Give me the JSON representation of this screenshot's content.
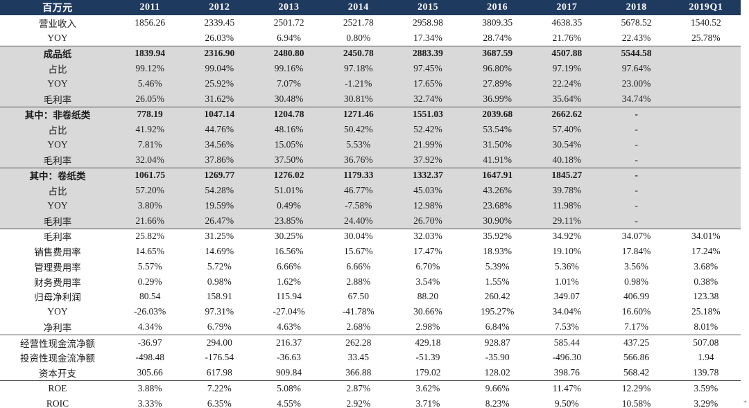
{
  "header": {
    "unit_label": "百万元",
    "years": [
      "2011",
      "2012",
      "2013",
      "2014",
      "2015",
      "2016",
      "2017",
      "2018",
      "2019Q1"
    ]
  },
  "rows": [
    {
      "label": "营业收入",
      "values": [
        "1856.26",
        "2339.45",
        "2501.72",
        "2521.78",
        "2958.98",
        "3809.35",
        "4638.35",
        "5678.52",
        "1540.52"
      ],
      "bold": false,
      "shade": false,
      "line": false
    },
    {
      "label": "YOY",
      "values": [
        "",
        "26.03%",
        "6.94%",
        "0.80%",
        "17.34%",
        "28.74%",
        "21.76%",
        "22.43%",
        "25.78%"
      ],
      "bold": false,
      "shade": false,
      "line": false
    },
    {
      "label": "成品纸",
      "values": [
        "1839.94",
        "2316.90",
        "2480.80",
        "2450.78",
        "2883.39",
        "3687.59",
        "4507.88",
        "5544.58",
        ""
      ],
      "bold": true,
      "shade": true,
      "line": true
    },
    {
      "label": "占比",
      "values": [
        "99.12%",
        "99.04%",
        "99.16%",
        "97.18%",
        "97.45%",
        "96.80%",
        "97.19%",
        "97.64%",
        ""
      ],
      "bold": false,
      "shade": true,
      "line": false
    },
    {
      "label": "YOY",
      "values": [
        "5.46%",
        "25.92%",
        "7.07%",
        "-1.21%",
        "17.65%",
        "27.89%",
        "22.24%",
        "23.00%",
        ""
      ],
      "bold": false,
      "shade": true,
      "line": false
    },
    {
      "label": "毛利率",
      "values": [
        "26.05%",
        "31.62%",
        "30.48%",
        "30.81%",
        "32.74%",
        "36.99%",
        "35.64%",
        "34.74%",
        ""
      ],
      "bold": false,
      "shade": true,
      "line": false
    },
    {
      "label": "其中：非卷纸类",
      "values": [
        "778.19",
        "1047.14",
        "1204.78",
        "1271.46",
        "1551.03",
        "2039.68",
        "2662.62",
        "-",
        ""
      ],
      "bold": true,
      "shade": true,
      "line": true
    },
    {
      "label": "占比",
      "values": [
        "41.92%",
        "44.76%",
        "48.16%",
        "50.42%",
        "52.42%",
        "53.54%",
        "57.40%",
        "-",
        ""
      ],
      "bold": false,
      "shade": true,
      "line": false
    },
    {
      "label": "YOY",
      "values": [
        "7.81%",
        "34.56%",
        "15.05%",
        "5.53%",
        "21.99%",
        "31.50%",
        "30.54%",
        "-",
        ""
      ],
      "bold": false,
      "shade": true,
      "line": false
    },
    {
      "label": "毛利率",
      "values": [
        "32.04%",
        "37.86%",
        "37.50%",
        "36.76%",
        "37.92%",
        "41.91%",
        "40.18%",
        "-",
        ""
      ],
      "bold": false,
      "shade": true,
      "line": false
    },
    {
      "label": "其中：卷纸类",
      "values": [
        "1061.75",
        "1269.77",
        "1276.02",
        "1179.33",
        "1332.37",
        "1647.91",
        "1845.27",
        "-",
        ""
      ],
      "bold": true,
      "shade": true,
      "line": true
    },
    {
      "label": "占比",
      "values": [
        "57.20%",
        "54.28%",
        "51.01%",
        "46.77%",
        "45.03%",
        "43.26%",
        "39.78%",
        "-",
        ""
      ],
      "bold": false,
      "shade": true,
      "line": false
    },
    {
      "label": "YOY",
      "values": [
        "3.80%",
        "19.59%",
        "0.49%",
        "-7.58%",
        "12.98%",
        "23.68%",
        "11.98%",
        "-",
        ""
      ],
      "bold": false,
      "shade": true,
      "line": false
    },
    {
      "label": "毛利率",
      "values": [
        "21.66%",
        "26.47%",
        "23.85%",
        "24.40%",
        "26.70%",
        "30.90%",
        "29.11%",
        "-",
        ""
      ],
      "bold": false,
      "shade": true,
      "line": false
    },
    {
      "label": "毛利率",
      "values": [
        "25.82%",
        "31.25%",
        "30.25%",
        "30.04%",
        "32.03%",
        "35.92%",
        "34.92%",
        "34.07%",
        "34.01%"
      ],
      "bold": false,
      "shade": false,
      "line": true
    },
    {
      "label": "销售费用率",
      "values": [
        "14.65%",
        "14.69%",
        "16.56%",
        "15.67%",
        "17.47%",
        "18.93%",
        "19.10%",
        "17.84%",
        "17.24%"
      ],
      "bold": false,
      "shade": false,
      "line": false
    },
    {
      "label": "管理费用率",
      "values": [
        "5.57%",
        "5.72%",
        "6.66%",
        "6.66%",
        "6.70%",
        "5.39%",
        "5.36%",
        "3.56%",
        "3.68%"
      ],
      "bold": false,
      "shade": false,
      "line": false
    },
    {
      "label": "财务费用率",
      "values": [
        "0.29%",
        "0.98%",
        "1.62%",
        "2.88%",
        "3.54%",
        "1.55%",
        "1.01%",
        "0.98%",
        "0.38%"
      ],
      "bold": false,
      "shade": false,
      "line": false
    },
    {
      "label": "归母净利润",
      "values": [
        "80.54",
        "158.91",
        "115.94",
        "67.50",
        "88.20",
        "260.42",
        "349.07",
        "406.99",
        "123.38"
      ],
      "bold": false,
      "shade": false,
      "line": false
    },
    {
      "label": "YOY",
      "values": [
        "-26.03%",
        "97.31%",
        "-27.04%",
        "-41.78%",
        "30.66%",
        "195.27%",
        "34.04%",
        "16.60%",
        "25.18%"
      ],
      "bold": false,
      "shade": false,
      "line": false
    },
    {
      "label": "净利率",
      "values": [
        "4.34%",
        "6.79%",
        "4.63%",
        "2.68%",
        "2.98%",
        "6.84%",
        "7.53%",
        "7.17%",
        "8.01%"
      ],
      "bold": false,
      "shade": false,
      "line": false
    },
    {
      "label": "经营性现金流净额",
      "values": [
        "-36.97",
        "294.00",
        "216.37",
        "262.28",
        "429.18",
        "928.87",
        "585.44",
        "437.25",
        "507.08"
      ],
      "bold": false,
      "shade": false,
      "line": true
    },
    {
      "label": "投资性现金流净额",
      "values": [
        "-498.48",
        "-176.54",
        "-36.63",
        "33.45",
        "-51.39",
        "-35.90",
        "-496.30",
        "566.86",
        "1.94"
      ],
      "bold": false,
      "shade": false,
      "line": false
    },
    {
      "label": "资本开支",
      "values": [
        "305.66",
        "617.98",
        "909.84",
        "366.88",
        "179.02",
        "128.02",
        "398.76",
        "568.42",
        "139.78"
      ],
      "bold": false,
      "shade": false,
      "line": false
    },
    {
      "label": "ROE",
      "values": [
        "3.88%",
        "7.22%",
        "5.08%",
        "2.87%",
        "3.62%",
        "9.66%",
        "11.47%",
        "12.29%",
        "3.59%"
      ],
      "bold": false,
      "shade": false,
      "line": true
    },
    {
      "label": "ROIC",
      "values": [
        "3.33%",
        "6.35%",
        "4.55%",
        "2.92%",
        "3.71%",
        "8.23%",
        "9.50%",
        "10.58%",
        "3.29%"
      ],
      "bold": false,
      "shade": false,
      "line": false
    }
  ],
  "colors": {
    "header_bg": "#1f3a5f",
    "header_text": "#ffffff",
    "shade_bg": "#d9d9d9",
    "separator_line": "#4a4a4a",
    "body_text": "#1c1c1c"
  },
  "artifact": {
    "glyph": "+"
  }
}
